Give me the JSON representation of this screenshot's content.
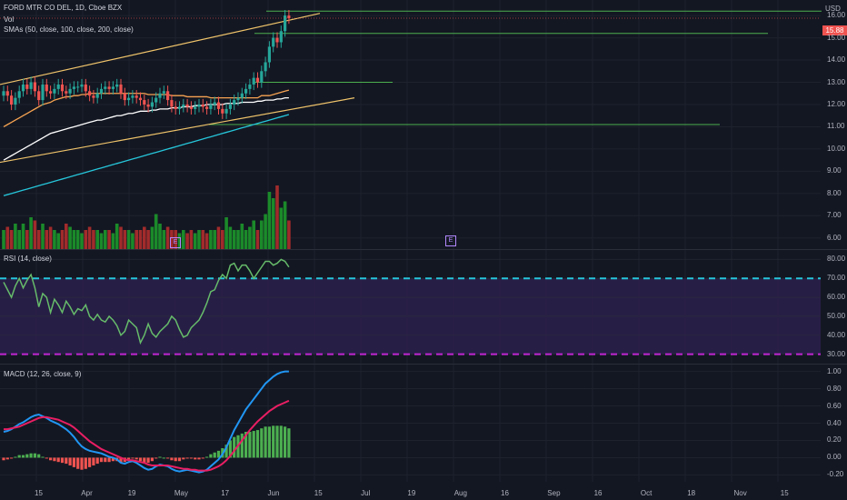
{
  "header": {
    "title": "FORD MTR CO DEL, 1D, Cboe BZX",
    "vol_label": "Vol",
    "sma_label": "SMAs (50, close, 100, close, 200, close)",
    "currency": "USD",
    "last_price": "15.88"
  },
  "rsi_pane": {
    "title": "RSI (14, close)"
  },
  "macd_pane": {
    "title": "MACD (12, 26, close, 9)"
  },
  "events": [
    {
      "label": "E"
    },
    {
      "label": "E"
    }
  ],
  "colors": {
    "up": "#26a69a",
    "down": "#ef5350",
    "vol_up": "#1b8a2a",
    "vol_down": "#a12b2b",
    "sma50": "#f7a352",
    "sma100": "#ffffff",
    "sma200": "#26c6da",
    "channel": "#f0c46b",
    "levels": "#4caf50",
    "rsi": "#66bb6a",
    "rsi_band": "#2a1f4a",
    "rsi_upper": "#26c6da",
    "rsi_lower": "#c026d3",
    "macd": "#2196f3",
    "signal": "#e91e63"
  },
  "chart_data": [
    {
      "type": "candlestick",
      "title": "FORD MTR CO DEL, 1D, Cboe BZX",
      "x_ticks": [
        "15",
        "Apr",
        "19",
        "May",
        "17",
        "Jun",
        "15",
        "Jul",
        "19",
        "Aug",
        "16",
        "Sep",
        "16",
        "Oct",
        "18",
        "Nov",
        "15"
      ],
      "y_ticks": [
        "6.00",
        "7.00",
        "8.00",
        "9.00",
        "10.00",
        "11.00",
        "12.00",
        "13.00",
        "14.00",
        "15.00",
        "16.00"
      ],
      "ylim": [
        5.5,
        16.7
      ],
      "closes": [
        12.6,
        12.4,
        12.0,
        12.3,
        12.6,
        12.9,
        12.7,
        13.0,
        12.6,
        12.2,
        12.9,
        12.6,
        12.5,
        12.7,
        12.9,
        12.6,
        12.5,
        12.7,
        12.8,
        12.8,
        12.9,
        12.6,
        12.4,
        12.3,
        12.5,
        12.7,
        12.8,
        12.7,
        12.8,
        12.9,
        12.5,
        12.2,
        12.3,
        12.4,
        12.3,
        12.2,
        12.0,
        11.9,
        12.1,
        12.3,
        12.5,
        12.6,
        12.2,
        11.9,
        11.8,
        11.9,
        12.0,
        11.9,
        11.8,
        11.9,
        12.0,
        11.9,
        11.8,
        12.0,
        12.1,
        11.8,
        11.6,
        11.8,
        12.0,
        12.2,
        12.3,
        12.5,
        12.7,
        12.9,
        13.2,
        13.0,
        13.5,
        13.9,
        14.6,
        15.0,
        14.8,
        15.3,
        16.0,
        15.88
      ],
      "volume_levels": [
        0.3,
        0.35,
        0.3,
        0.4,
        0.3,
        0.4,
        0.3,
        0.5,
        0.45,
        0.3,
        0.4,
        0.3,
        0.35,
        0.3,
        0.25,
        0.3,
        0.4,
        0.35,
        0.3,
        0.3,
        0.25,
        0.3,
        0.35,
        0.3,
        0.3,
        0.25,
        0.3,
        0.3,
        0.25,
        0.4,
        0.35,
        0.3,
        0.3,
        0.25,
        0.3,
        0.3,
        0.35,
        0.3,
        0.35,
        0.55,
        0.4,
        0.3,
        0.35,
        0.3,
        0.3,
        0.25,
        0.3,
        0.25,
        0.3,
        0.25,
        0.3,
        0.3,
        0.25,
        0.3,
        0.3,
        0.35,
        0.3,
        0.5,
        0.35,
        0.3,
        0.3,
        0.4,
        0.3,
        0.35,
        0.45,
        0.3,
        0.45,
        0.55,
        0.9,
        0.8,
        1.0,
        0.65,
        0.75,
        0.45
      ],
      "series": [
        {
          "name": "SMA 50",
          "values": [
            11.0,
            11.1,
            11.2,
            11.3,
            11.4,
            11.5,
            11.6,
            11.7,
            11.8,
            11.9,
            12.0,
            12.05,
            12.1,
            12.2,
            12.25,
            12.3,
            12.35,
            12.35,
            12.4,
            12.4,
            12.45,
            12.45,
            12.5,
            12.5,
            12.5,
            12.5,
            12.5,
            12.5,
            12.5,
            12.5,
            12.5,
            12.5,
            12.5,
            12.5,
            12.5,
            12.5,
            12.5,
            12.45,
            12.45,
            12.45,
            12.45,
            12.45,
            12.45,
            12.4,
            12.4,
            12.4,
            12.4,
            12.35,
            12.35,
            12.35,
            12.35,
            12.35,
            12.35,
            12.3,
            12.3,
            12.3,
            12.3,
            12.3,
            12.3,
            12.3,
            12.3,
            12.3,
            12.3,
            12.3,
            12.3,
            12.3,
            12.4,
            12.4,
            12.4,
            12.45,
            12.5,
            12.55,
            12.6,
            12.65
          ]
        },
        {
          "name": "SMA 100",
          "values": [
            9.5,
            9.6,
            9.7,
            9.8,
            9.9,
            10.0,
            10.1,
            10.2,
            10.3,
            10.4,
            10.5,
            10.6,
            10.7,
            10.75,
            10.8,
            10.85,
            10.9,
            10.95,
            11.0,
            11.05,
            11.1,
            11.15,
            11.2,
            11.25,
            11.3,
            11.3,
            11.35,
            11.4,
            11.45,
            11.5,
            11.5,
            11.55,
            11.6,
            11.6,
            11.65,
            11.7,
            11.7,
            11.7,
            11.75,
            11.75,
            11.8,
            11.8,
            11.8,
            11.85,
            11.85,
            11.85,
            11.9,
            11.9,
            11.9,
            11.95,
            11.95,
            11.95,
            12.0,
            12.0,
            12.0,
            12.0,
            12.0,
            12.05,
            12.05,
            12.05,
            12.05,
            12.1,
            12.1,
            12.1,
            12.1,
            12.15,
            12.15,
            12.2,
            12.2,
            12.2,
            12.25,
            12.25,
            12.3,
            12.3
          ]
        },
        {
          "name": "SMA 200",
          "values": [
            7.9,
            7.95,
            8.0,
            8.05,
            8.1,
            8.15,
            8.2,
            8.25,
            8.3,
            8.35,
            8.4,
            8.45,
            8.5,
            8.55,
            8.6,
            8.65,
            8.7,
            8.75,
            8.8,
            8.85,
            8.9,
            8.95,
            9.0,
            9.05,
            9.1,
            9.15,
            9.2,
            9.25,
            9.3,
            9.35,
            9.4,
            9.45,
            9.5,
            9.55,
            9.6,
            9.65,
            9.7,
            9.75,
            9.8,
            9.85,
            9.9,
            9.95,
            10.0,
            10.05,
            10.1,
            10.15,
            10.2,
            10.25,
            10.3,
            10.35,
            10.4,
            10.45,
            10.5,
            10.55,
            10.6,
            10.65,
            10.7,
            10.75,
            10.8,
            10.85,
            10.9,
            10.95,
            11.0,
            11.05,
            11.1,
            11.15,
            11.2,
            11.25,
            11.3,
            11.35,
            11.4,
            11.45,
            11.5,
            11.55
          ]
        }
      ]
    },
    {
      "type": "line",
      "title": "RSI (14, close)",
      "y_ticks": [
        "30.00",
        "40.00",
        "50.00",
        "60.00",
        "70.00",
        "80.00"
      ],
      "ylim": [
        25,
        85
      ],
      "upper_band": 70,
      "lower_band": 30,
      "values": [
        68,
        64,
        60,
        66,
        70,
        65,
        69,
        72,
        65,
        55,
        62,
        60,
        52,
        59,
        56,
        52,
        58,
        55,
        51,
        54,
        53,
        56,
        50,
        48,
        51,
        48,
        47,
        50,
        48,
        45,
        40,
        42,
        48,
        46,
        44,
        36,
        40,
        46,
        41,
        39,
        42,
        44,
        46,
        50,
        48,
        43,
        39,
        40,
        44,
        46,
        48,
        52,
        57,
        63,
        64,
        69,
        72,
        70,
        77,
        78,
        74,
        77,
        77,
        74,
        70,
        73,
        76,
        79,
        79,
        77,
        78,
        80,
        79,
        76
      ]
    },
    {
      "type": "bar-line",
      "title": "MACD (12, 26, close, 9)",
      "y_ticks": [
        "-0.20",
        "0.00",
        "0.20",
        "0.40",
        "0.60",
        "0.80",
        "1.00"
      ],
      "ylim": [
        -0.28,
        1.08
      ],
      "series": [
        {
          "name": "MACD",
          "values": [
            0.3,
            0.31,
            0.33,
            0.36,
            0.39,
            0.41,
            0.44,
            0.47,
            0.49,
            0.5,
            0.48,
            0.46,
            0.43,
            0.41,
            0.39,
            0.36,
            0.33,
            0.29,
            0.24,
            0.18,
            0.13,
            0.1,
            0.08,
            0.07,
            0.06,
            0.05,
            0.03,
            0.01,
            0.0,
            -0.02,
            -0.06,
            -0.07,
            -0.05,
            -0.04,
            -0.06,
            -0.09,
            -0.12,
            -0.14,
            -0.13,
            -0.1,
            -0.08,
            -0.09,
            -0.1,
            -0.13,
            -0.15,
            -0.16,
            -0.15,
            -0.14,
            -0.15,
            -0.16,
            -0.17,
            -0.16,
            -0.14,
            -0.1,
            -0.06,
            -0.02,
            0.04,
            0.12,
            0.22,
            0.32,
            0.4,
            0.48,
            0.56,
            0.62,
            0.68,
            0.74,
            0.8,
            0.86,
            0.9,
            0.94,
            0.97,
            0.99,
            1.0,
            1.0
          ]
        },
        {
          "name": "Signal",
          "values": [
            0.33,
            0.33,
            0.34,
            0.35,
            0.36,
            0.38,
            0.4,
            0.42,
            0.44,
            0.46,
            0.47,
            0.47,
            0.46,
            0.45,
            0.44,
            0.42,
            0.4,
            0.38,
            0.35,
            0.31,
            0.27,
            0.23,
            0.19,
            0.16,
            0.13,
            0.1,
            0.08,
            0.06,
            0.04,
            0.02,
            0.0,
            -0.02,
            -0.03,
            -0.03,
            -0.04,
            -0.05,
            -0.06,
            -0.08,
            -0.09,
            -0.09,
            -0.09,
            -0.09,
            -0.09,
            -0.1,
            -0.11,
            -0.12,
            -0.13,
            -0.13,
            -0.14,
            -0.14,
            -0.15,
            -0.15,
            -0.15,
            -0.14,
            -0.12,
            -0.1,
            -0.07,
            -0.03,
            0.02,
            0.08,
            0.14,
            0.2,
            0.26,
            0.32,
            0.37,
            0.42,
            0.46,
            0.5,
            0.54,
            0.57,
            0.6,
            0.62,
            0.64,
            0.66
          ]
        }
      ]
    }
  ]
}
